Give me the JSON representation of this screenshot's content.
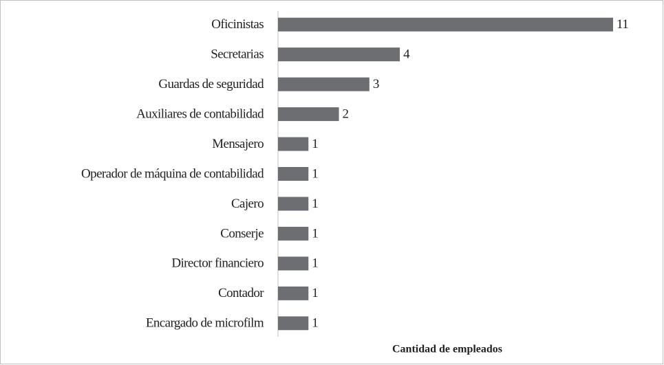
{
  "chart_data": {
    "type": "bar",
    "orientation": "horizontal",
    "categories": [
      "Oficinistas",
      "Secretarias",
      "Guardas de seguridad",
      "Auxiliares de contabilidad",
      "Mensajero",
      "Operador de máquina de contabilidad",
      "Cajero",
      "Conserje",
      "Director financiero",
      "Contador",
      "Encargado de microfilm"
    ],
    "values": [
      11,
      4,
      3,
      2,
      1,
      1,
      1,
      1,
      1,
      1,
      1
    ],
    "color": "#6d6e71",
    "xlim": [
      0,
      11
    ],
    "xlabel": "Cantidad de empleados"
  }
}
